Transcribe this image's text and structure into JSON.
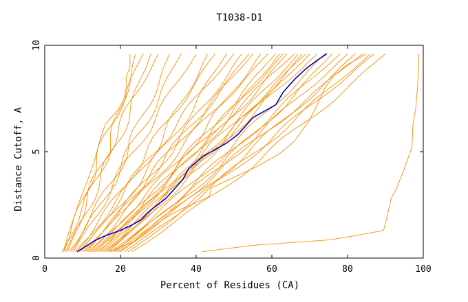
{
  "chart_data": {
    "type": "line",
    "title": "T1038-D1",
    "xlabel": "Percent of Residues (CA)",
    "ylabel": "Distance Cutoff, A",
    "xlim": [
      0,
      100
    ],
    "ylim": [
      0,
      10
    ],
    "x_ticks": [
      0,
      20,
      40,
      60,
      80,
      100
    ],
    "y_ticks": [
      0,
      5,
      10
    ],
    "grid": false,
    "colors": {
      "group": "#ff8c00",
      "highlight": "#0000c8",
      "axis": "#000000"
    },
    "highlight": [
      [
        8.5,
        0.3
      ],
      [
        10,
        0.45
      ],
      [
        13,
        0.8
      ],
      [
        16,
        1.05
      ],
      [
        20,
        1.3
      ],
      [
        23,
        1.55
      ],
      [
        25.5,
        1.8
      ],
      [
        27,
        2.1
      ],
      [
        29,
        2.4
      ],
      [
        32,
        2.8
      ],
      [
        34,
        3.2
      ],
      [
        36.5,
        3.7
      ],
      [
        38,
        4.2
      ],
      [
        40,
        4.5
      ],
      [
        42,
        4.8
      ],
      [
        45,
        5.1
      ],
      [
        48,
        5.4
      ],
      [
        51,
        5.8
      ],
      [
        53,
        6.2
      ],
      [
        55,
        6.6
      ],
      [
        58,
        6.9
      ],
      [
        61,
        7.2
      ],
      [
        63,
        7.8
      ],
      [
        66,
        8.4
      ],
      [
        69,
        8.9
      ],
      [
        72,
        9.3
      ],
      [
        74.5,
        9.6
      ]
    ],
    "outliers": [
      [
        [
          41.5,
          0.3
        ],
        [
          55,
          0.6
        ],
        [
          75,
          0.85
        ],
        [
          82,
          1.05
        ],
        [
          89.5,
          1.3
        ],
        [
          90.5,
          2.0
        ],
        [
          91.5,
          2.8
        ],
        [
          93,
          3.3
        ],
        [
          95,
          4.2
        ],
        [
          97,
          5.2
        ],
        [
          97.3,
          6.3
        ],
        [
          98,
          7.0
        ],
        [
          98.5,
          8.1
        ],
        [
          98.8,
          9.0
        ],
        [
          98.8,
          9.6
        ]
      ],
      [
        [
          5,
          0.3
        ],
        [
          6,
          1.0
        ],
        [
          7.5,
          1.8
        ],
        [
          9,
          2.6
        ],
        [
          11,
          3.5
        ],
        [
          13,
          4.5
        ],
        [
          14.5,
          5.5
        ],
        [
          16,
          6.3
        ],
        [
          18,
          6.7
        ],
        [
          19.5,
          7.0
        ],
        [
          21,
          7.5
        ],
        [
          21.5,
          8.0
        ],
        [
          21.5,
          8.5
        ],
        [
          22.5,
          9.0
        ],
        [
          22.5,
          9.6
        ]
      ],
      [
        [
          17,
          0.3
        ],
        [
          24,
          0.8
        ],
        [
          28,
          1.4
        ],
        [
          32,
          1.9
        ],
        [
          36,
          2.3
        ],
        [
          40,
          2.6
        ],
        [
          43.5,
          2.9
        ],
        [
          44,
          3.3
        ],
        [
          50,
          3.8
        ],
        [
          56,
          4.3
        ],
        [
          62,
          4.9
        ],
        [
          66,
          5.5
        ],
        [
          68,
          6.0
        ],
        [
          70,
          6.5
        ],
        [
          72,
          7.2
        ],
        [
          74,
          8.0
        ],
        [
          76.5,
          8.6
        ],
        [
          80,
          9.1
        ],
        [
          85,
          9.6
        ]
      ]
    ],
    "group_starts": [
      4.5,
      5.0,
      5.5,
      6.0,
      6.5,
      7.0,
      7.5,
      8.0,
      8.5,
      9.0,
      9.5,
      10.0,
      10.5,
      11.0,
      11.5,
      12.0,
      12.5,
      13.0,
      13.5,
      14.0,
      14.5,
      15.0,
      15.5,
      16.0,
      16.5,
      17.0,
      17.5,
      18.0,
      18.5,
      19.0,
      19.5,
      20.0,
      21.0,
      22.0,
      23.0
    ],
    "group_ends": [
      24.0,
      26.0,
      28.0,
      30.0,
      33.0,
      36.0,
      40.0,
      43.0,
      45.0,
      48.0,
      50.0,
      52.0,
      54.0,
      55.0,
      57.0,
      59.0,
      61.0,
      62.0,
      63.0,
      64.0,
      66.0,
      67.0,
      68.0,
      69.0,
      70.0,
      72.0,
      74.0,
      76.0,
      78.0,
      80.0,
      82.0,
      84.0,
      86.0,
      87.0,
      90.0
    ],
    "group_bend": [
      0.35,
      -0.25,
      0.15,
      -0.4,
      0.25,
      0.05,
      -0.2,
      0.45,
      -0.1,
      0.3,
      -0.35,
      0.2,
      0.0,
      -0.15,
      0.4,
      -0.3,
      0.1,
      0.35,
      -0.05,
      0.22,
      -0.45,
      0.12,
      0.28,
      -0.22,
      0.06,
      -0.38,
      0.18,
      0.42,
      -0.12,
      0.02,
      0.32,
      -0.28,
      0.14,
      -0.08,
      0.26
    ]
  }
}
